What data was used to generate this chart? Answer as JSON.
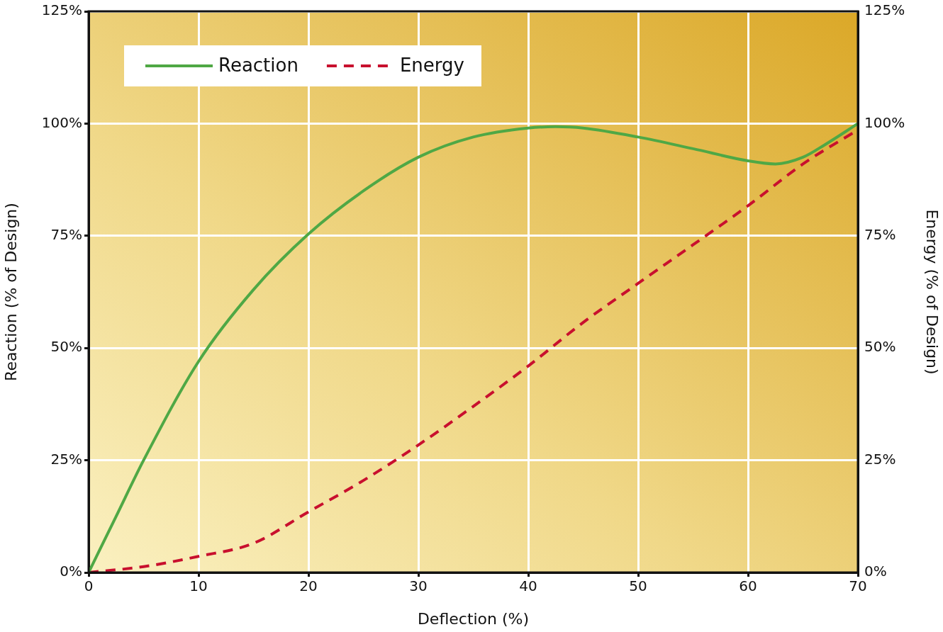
{
  "chart_data": {
    "type": "line",
    "xlabel": "Deflection (%)",
    "ylabel": "Reaction (% of Design)",
    "y2label": "Energy (% of Design)",
    "xlim": [
      0,
      70
    ],
    "xticks": [
      0,
      10,
      20,
      30,
      40,
      50,
      60,
      70
    ],
    "ylim": [
      0,
      125
    ],
    "yticks": [
      {
        "value": 0,
        "label": "0%"
      },
      {
        "value": 25,
        "label": "25%"
      },
      {
        "value": 50,
        "label": "50%"
      },
      {
        "value": 75,
        "label": "75%"
      },
      {
        "value": 100,
        "label": "100%"
      },
      {
        "value": 125,
        "label": "125%"
      }
    ],
    "y2lim": [
      0,
      125
    ],
    "y2ticks": [
      {
        "value": 0,
        "label": "0%"
      },
      {
        "value": 25,
        "label": "25%"
      },
      {
        "value": 50,
        "label": "50%"
      },
      {
        "value": 75,
        "label": "75%"
      },
      {
        "value": 100,
        "label": "100%"
      },
      {
        "value": 125,
        "label": "125%"
      }
    ],
    "grid": true,
    "legend": "top left",
    "marker": "none",
    "series": [
      {
        "name": "Reaction",
        "color": "#4fa845",
        "line_style": "solid",
        "x": [
          0,
          2.5,
          5,
          10,
          15,
          20,
          25,
          30,
          35,
          40,
          42.5,
          45,
          50,
          55,
          60,
          62.5,
          65,
          67,
          70
        ],
        "values": [
          0,
          12.5,
          25,
          47,
          63,
          75.4,
          85,
          92.5,
          97,
          99,
          99.3,
          99,
          97,
          94.4,
          91.7,
          91,
          92.5,
          95.3,
          100
        ]
      },
      {
        "name": "Energy",
        "color": "#c8102e",
        "line_style": "dashed",
        "axis": "y2",
        "x": [
          0,
          5,
          10,
          15,
          20,
          25,
          30,
          35,
          40,
          45,
          50,
          55,
          60,
          65,
          70
        ],
        "values": [
          0,
          1.3,
          3.6,
          6.5,
          13.5,
          20.5,
          28.4,
          37,
          46,
          55.7,
          64.4,
          73,
          81.7,
          91,
          98.6
        ]
      }
    ]
  }
}
